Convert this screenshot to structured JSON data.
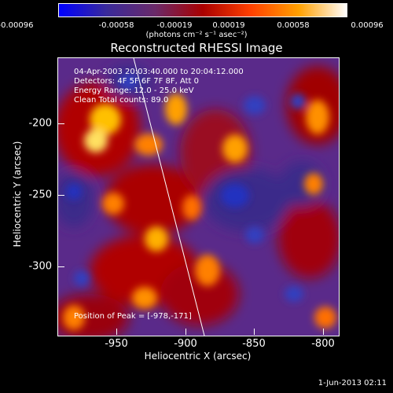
{
  "colorbar": {
    "tick_labels": [
      "-0.00096",
      "-0.00058",
      "-0.00019",
      "0.00019",
      "0.00058",
      "0.00096"
    ],
    "units_label": "(photons cm⁻² s⁻¹ asec⁻²)",
    "colors": [
      "#0000ff",
      "#3a2a9a",
      "#6a2a6a",
      "#aa0000",
      "#ff4000",
      "#ffa000",
      "#ffffff"
    ]
  },
  "title": "Reconstructed RHESSI Image",
  "annotations": {
    "line1": "04-Apr-2003 20:03:40.000 to 20:04:12.000",
    "line2": "Detectors: 4F 5F 6F 7F 8F, Att 0",
    "line3": "Energy Range: 12.0 - 25.0 keV",
    "line4": "Clean     Total counts: 89.0",
    "peak": "Position of Peak = [-978,-171]"
  },
  "x_axis": {
    "title": "Heliocentric X (arcsec)",
    "tick_labels": [
      "-950",
      "-900",
      "-850",
      "-800"
    ]
  },
  "y_axis": {
    "title": "Heliocentric Y (arcsec)",
    "tick_labels": [
      "-200",
      "-250",
      "-300"
    ]
  },
  "timestamp": "1-Jun-2013 02:11"
}
